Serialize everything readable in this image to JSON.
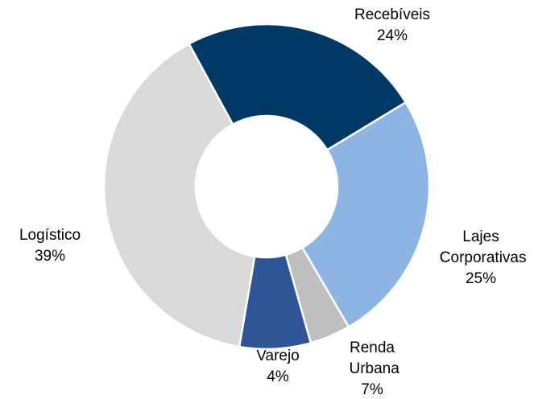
{
  "chart_data": {
    "type": "donut",
    "categories": [
      "Recebíveis",
      "Lajes Corporativas",
      "Varejo",
      "Renda Urbana",
      "Logístico"
    ],
    "values": [
      24,
      25,
      4,
      7,
      39
    ],
    "value_labels": [
      "24%",
      "25%",
      "4%",
      "7%",
      "39%"
    ],
    "colors": [
      "#003865",
      "#8db4e2",
      "#bfbfbf",
      "#2f5597",
      "#d9d9d9"
    ]
  }
}
